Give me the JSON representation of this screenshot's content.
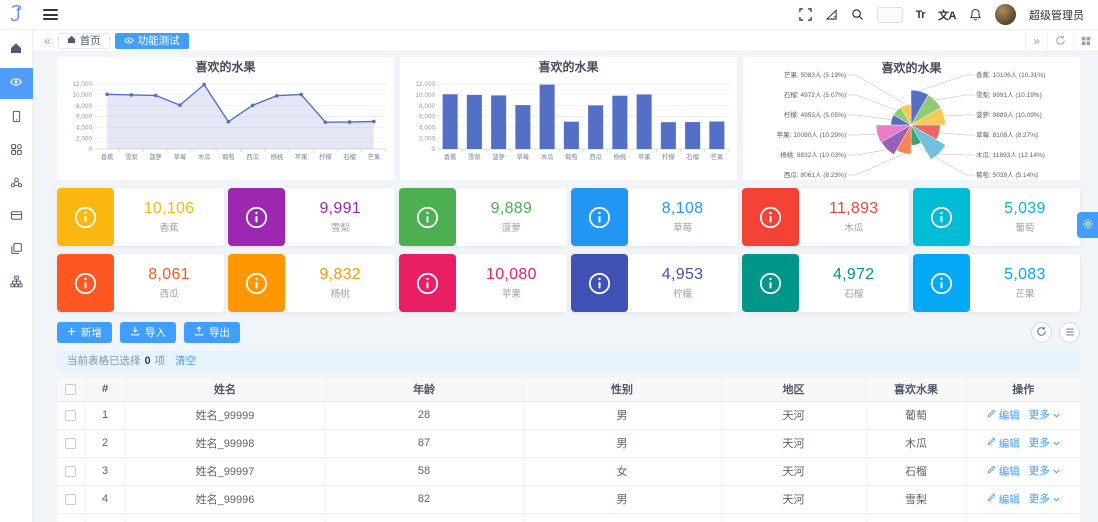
{
  "header": {
    "username": "超级管理员",
    "font_size_label": "Tr",
    "translate_label": "文A"
  },
  "tabbar": {
    "scroll_left_glyph": "«",
    "scroll_right_glyph": "»",
    "tabs": [
      {
        "label": "首页",
        "icon": "home",
        "active": false
      },
      {
        "label": "功能测试",
        "icon": "eye",
        "active": true
      }
    ]
  },
  "sidebar": {
    "items": [
      {
        "name": "home",
        "icon": "home",
        "active": false
      },
      {
        "name": "feature-test",
        "icon": "eye",
        "active": true
      },
      {
        "name": "device",
        "icon": "tablet",
        "active": false
      },
      {
        "name": "components",
        "icon": "components",
        "active": false
      },
      {
        "name": "organization",
        "icon": "cluster",
        "active": false
      },
      {
        "name": "form",
        "icon": "panel",
        "active": false
      },
      {
        "name": "pages",
        "icon": "pages",
        "active": false
      },
      {
        "name": "structure",
        "icon": "sitemap",
        "active": false
      }
    ]
  },
  "chart_data": [
    {
      "type": "line",
      "title": "喜欢的水果",
      "categories": [
        "香蕉",
        "雪梨",
        "菠萝",
        "草莓",
        "木瓜",
        "葡萄",
        "西瓜",
        "杨桃",
        "苹果",
        "柠檬",
        "石榴",
        "芒果"
      ],
      "values": [
        10106,
        9991,
        9889,
        8108,
        11893,
        5039,
        8061,
        9832,
        10080,
        4953,
        4972,
        5083
      ],
      "xlabel": "",
      "ylabel": "",
      "ylim": [
        0,
        12000
      ],
      "ytick_step": 2000,
      "grid": true,
      "area": true,
      "color": "#5470c6"
    },
    {
      "type": "bar",
      "title": "喜欢的水果",
      "categories": [
        "香蕉",
        "雪梨",
        "菠萝",
        "草莓",
        "木瓜",
        "葡萄",
        "西瓜",
        "杨桃",
        "苹果",
        "柠檬",
        "石榴",
        "芒果"
      ],
      "values": [
        10106,
        9991,
        9889,
        8108,
        11893,
        5039,
        8061,
        9832,
        10080,
        4953,
        4972,
        5083
      ],
      "xlabel": "",
      "ylabel": "",
      "ylim": [
        0,
        12000
      ],
      "ytick_step": 2000,
      "grid": true,
      "color": "#5470c6"
    },
    {
      "type": "pie",
      "subtype": "rose",
      "title": "喜欢的水果",
      "unit": "人",
      "items": [
        {
          "name": "香蕉",
          "value": 10106,
          "pct": "10.31%"
        },
        {
          "name": "雪梨",
          "value": 9991,
          "pct": "10.19%"
        },
        {
          "name": "菠萝",
          "value": 9889,
          "pct": "10.09%"
        },
        {
          "name": "草莓",
          "value": 8108,
          "pct": "8.27%"
        },
        {
          "name": "木瓜",
          "value": 11893,
          "pct": "12.14%"
        },
        {
          "name": "葡萄",
          "value": 5039,
          "pct": "5.14%"
        },
        {
          "name": "西瓜",
          "value": 8061,
          "pct": "8.23%"
        },
        {
          "name": "杨桃",
          "value": 9832,
          "pct": "10.03%"
        },
        {
          "name": "苹果",
          "value": 10080,
          "pct": "10.29%"
        },
        {
          "name": "柠檬",
          "value": 4953,
          "pct": "5.05%"
        },
        {
          "name": "石榴",
          "value": 4972,
          "pct": "5.07%"
        },
        {
          "name": "芒果",
          "value": 5083,
          "pct": "5.19%"
        }
      ],
      "palette": [
        "#5470c6",
        "#91cc75",
        "#fac858",
        "#ee6666",
        "#73c0de",
        "#3ba272",
        "#fc8452",
        "#9a60b4",
        "#ea7ccc"
      ],
      "legend_position": "none"
    }
  ],
  "stats": [
    {
      "value": "10,106",
      "label": "香蕉",
      "color": "#fcb710"
    },
    {
      "value": "9,991",
      "label": "雪梨",
      "color": "#9c27b0"
    },
    {
      "value": "9,889",
      "label": "菠萝",
      "color": "#4caf50"
    },
    {
      "value": "8,108",
      "label": "草莓",
      "color": "#2196f3"
    },
    {
      "value": "11,893",
      "label": "木瓜",
      "color": "#f44336"
    },
    {
      "value": "5,039",
      "label": "葡萄",
      "color": "#00bcd4"
    },
    {
      "value": "8,061",
      "label": "西瓜",
      "color": "#ff5722"
    },
    {
      "value": "9,832",
      "label": "杨桃",
      "color": "#ff9800"
    },
    {
      "value": "10,080",
      "label": "苹果",
      "color": "#e91e63"
    },
    {
      "value": "4,953",
      "label": "柠檬",
      "color": "#3f51b5"
    },
    {
      "value": "4,972",
      "label": "石榴",
      "color": "#009688"
    },
    {
      "value": "5,083",
      "label": "芒果",
      "color": "#03a9f4"
    }
  ],
  "toolbar": {
    "add_label": "新增",
    "import_label": "导入",
    "export_label": "导出"
  },
  "alert": {
    "text_prefix": "当前表格已选择",
    "count": "0",
    "text_suffix": "项",
    "clear_label": "清空"
  },
  "table": {
    "columns": [
      "#",
      "姓名",
      "年龄",
      "性别",
      "地区",
      "喜欢水果",
      "操作"
    ],
    "rows": [
      {
        "index": "1",
        "name": "姓名_99999",
        "age": "28",
        "gender": "男",
        "region": "天河",
        "fruit": "葡萄"
      },
      {
        "index": "2",
        "name": "姓名_99998",
        "age": "87",
        "gender": "男",
        "region": "天河",
        "fruit": "木瓜"
      },
      {
        "index": "3",
        "name": "姓名_99997",
        "age": "58",
        "gender": "女",
        "region": "天河",
        "fruit": "石榴"
      },
      {
        "index": "4",
        "name": "姓名_99996",
        "age": "82",
        "gender": "男",
        "region": "天河",
        "fruit": "雪梨"
      }
    ],
    "actions": {
      "edit_label": "编辑",
      "more_label": "更多"
    }
  }
}
